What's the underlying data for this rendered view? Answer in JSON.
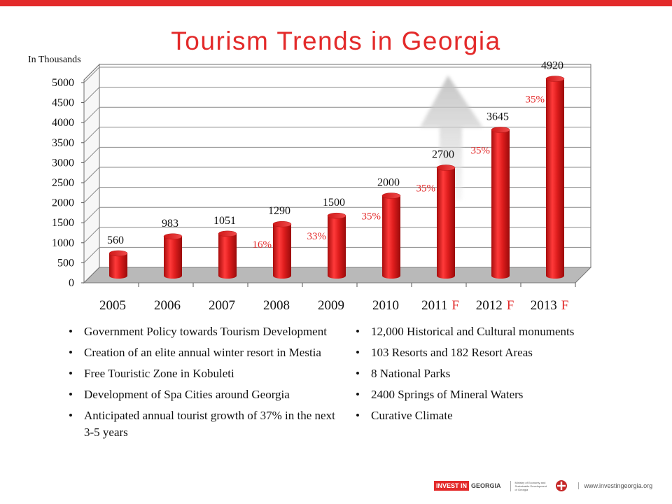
{
  "title": "Tourism Trends in Georgia",
  "chart_data": {
    "type": "bar",
    "title": "Tourism Trends in Georgia",
    "ylabel": "In Thousands",
    "ylim": [
      0,
      5000
    ],
    "yticks": [
      0,
      500,
      1000,
      1500,
      2000,
      2500,
      3000,
      3500,
      4000,
      4500,
      5000
    ],
    "grid": true,
    "categories": [
      {
        "year": "2005",
        "suffix": ""
      },
      {
        "year": "2006",
        "suffix": ""
      },
      {
        "year": "2007",
        "suffix": ""
      },
      {
        "year": "2008",
        "suffix": ""
      },
      {
        "year": "2009",
        "suffix": ""
      },
      {
        "year": "2010",
        "suffix": ""
      },
      {
        "year": "2011",
        "suffix": "F"
      },
      {
        "year": "2012",
        "suffix": "F"
      },
      {
        "year": "2013",
        "suffix": "F"
      }
    ],
    "values": [
      560,
      983,
      1051,
      1290,
      1500,
      2000,
      2700,
      3645,
      4920
    ],
    "value_labels": [
      "560",
      "983",
      "1051",
      "1290",
      "1500",
      "2000",
      "2700",
      "3645",
      "4920"
    ],
    "growth_labels": [
      "",
      "",
      "",
      "16%",
      "33%",
      "35%",
      "35%",
      "35%",
      "35%"
    ],
    "bar_color": "#e01e1e",
    "growth_color": "#e32a2a",
    "arrow_color": "#c7c7c7"
  },
  "bullets_left": [
    "Government Policy towards Tourism Development",
    "Creation of an elite annual winter resort in Mestia",
    "Free Touristic Zone in Kobuleti",
    "Development of Spa Cities around Georgia",
    "Anticipated annual tourist growth of 37% in the next 3-5 years"
  ],
  "bullets_right": [
    "12,000 Historical and Cultural monuments",
    "103 Resorts and 182 Resort Areas",
    "8 National Parks",
    "2400 Springs of Mineral Waters",
    "Curative Climate"
  ],
  "footer": {
    "logo_a": "INVEST IN",
    "logo_b": "GEORGIA",
    "ministry": "Ministry of Economy and Sustainable Development of Georgia",
    "website": "www.investingeorgia.org"
  },
  "colors": {
    "accent": "#e32a2a"
  }
}
